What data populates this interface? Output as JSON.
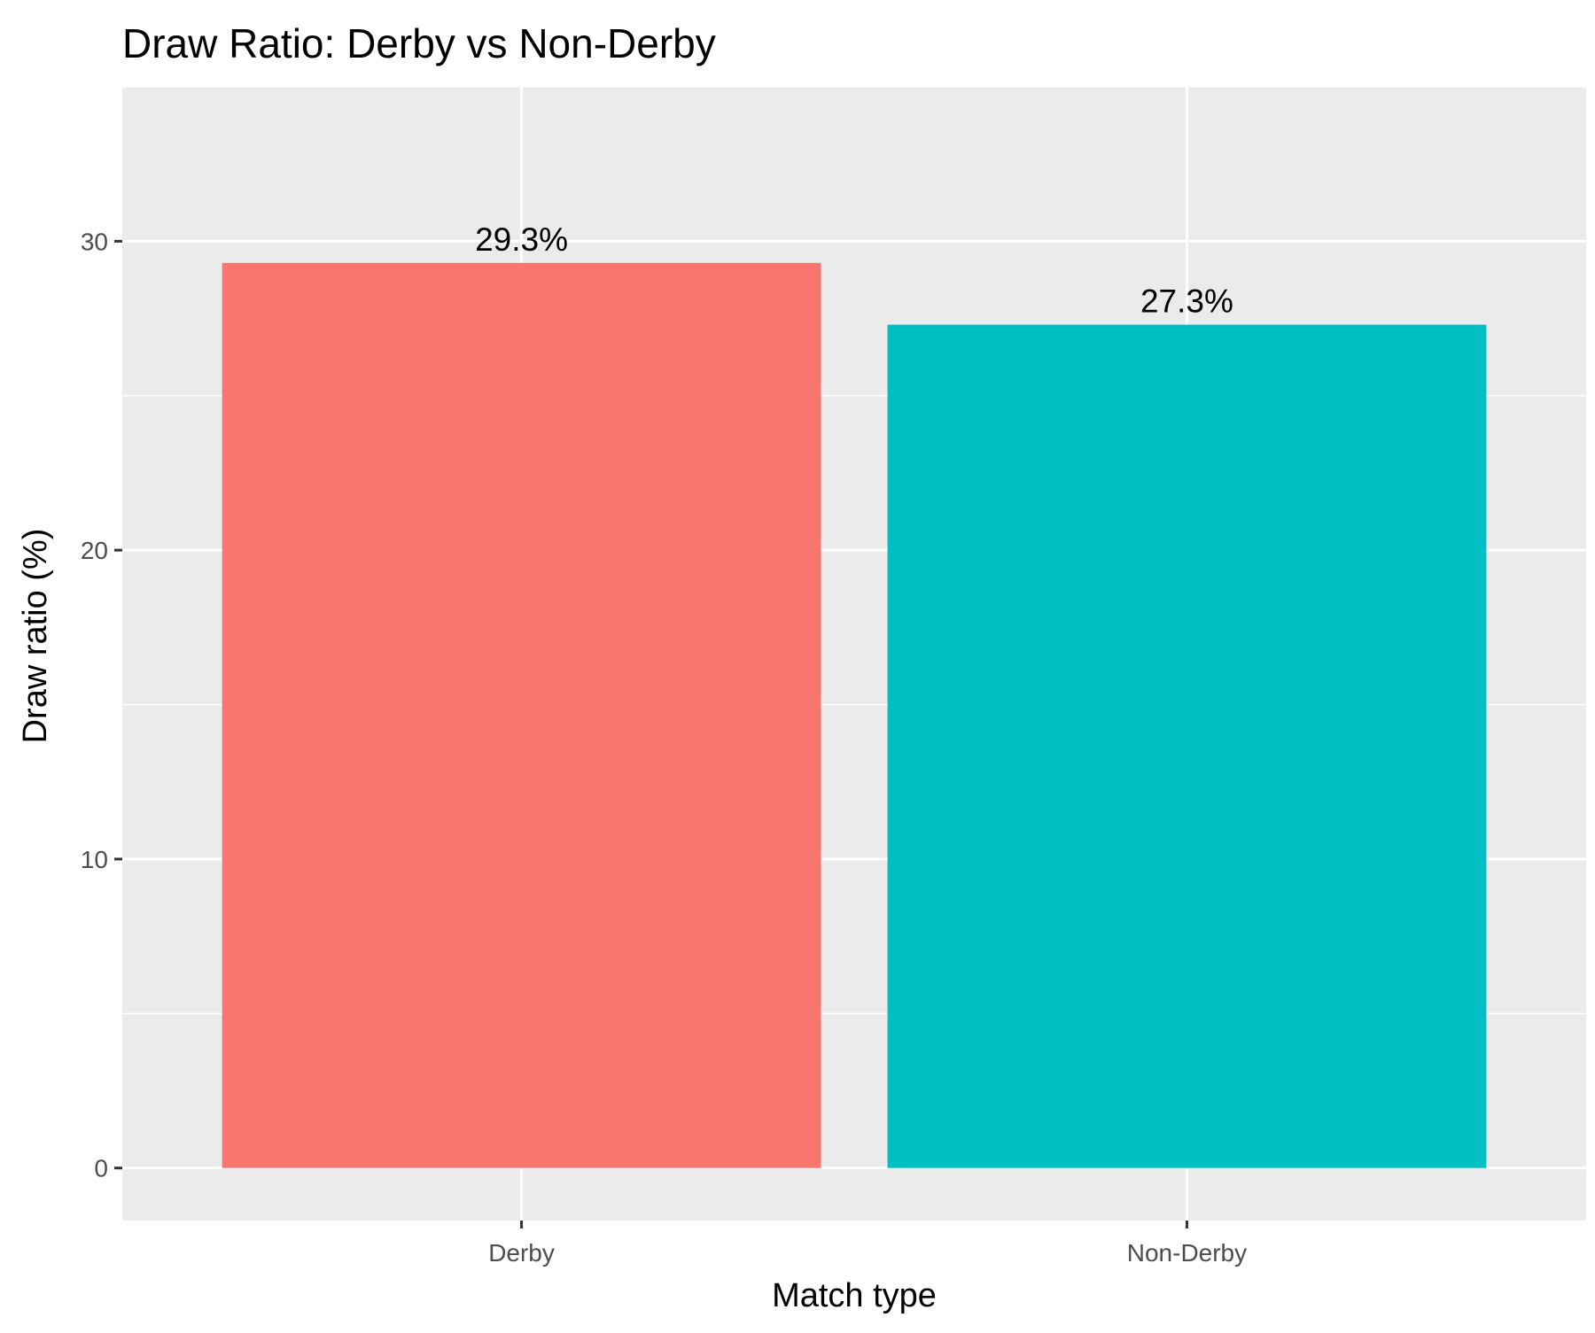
{
  "chart_data": {
    "type": "bar",
    "title": "Draw Ratio: Derby vs Non-Derby",
    "xlabel": "Match type",
    "ylabel": "Draw ratio (%)",
    "categories": [
      "Derby",
      "Non-Derby"
    ],
    "values": [
      29.3,
      27.3
    ],
    "data_labels": [
      "29.3%",
      "27.3%"
    ],
    "colors": [
      "#F8766D",
      "#00BFC4"
    ],
    "ylim": [
      -1.7,
      35
    ],
    "y_ticks": [
      0,
      10,
      20,
      30
    ],
    "y_tick_labels": [
      "0",
      "10",
      "20",
      "30"
    ],
    "y_minor_ticks": [
      5,
      15,
      25,
      35
    ],
    "grid": true,
    "panel_background": "#EBEBEB",
    "grid_color": "#FFFFFF",
    "legend": "none"
  }
}
